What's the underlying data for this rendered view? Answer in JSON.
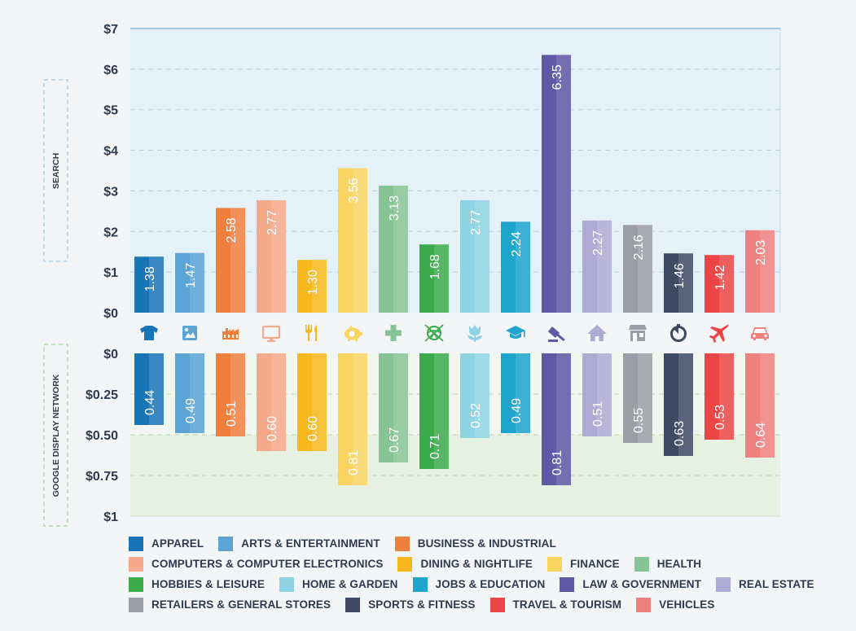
{
  "chart_data": {
    "type": "bar",
    "categories": [
      "APPAREL",
      "ARTS & ENTERTAINMENT",
      "BUSINESS & INDUSTRIAL",
      "COMPUTERS & COMPUTER ELECTRONICS",
      "DINING & NIGHTLIFE",
      "FINANCE",
      "HEALTH",
      "HOBBIES & LEISURE",
      "HOME & GARDEN",
      "JOBS & EDUCATION",
      "LAW & GOVERNMENT",
      "REAL ESTATE",
      "RETAILERS & GENERAL STORES",
      "SPORTS & FITNESS",
      "TRAVEL & TOURISM",
      "VEHICLES"
    ],
    "colors": [
      "#1875b7",
      "#5aa4d6",
      "#f07f3e",
      "#f5a98a",
      "#f6b81d",
      "#f9d463",
      "#86c496",
      "#3aaa4b",
      "#8ed3e4",
      "#1ea5cd",
      "#5f58a5",
      "#aeaad4",
      "#9b9ea6",
      "#3e4a63",
      "#ec4545",
      "#ef8080"
    ],
    "icons": [
      "shirt-icon",
      "picture-icon",
      "factory-icon",
      "monitor-icon",
      "fork-knife-icon",
      "piggy-bank-icon",
      "medical-cross-icon",
      "yarn-ball-icon",
      "tulip-icon",
      "graduation-cap-icon",
      "gavel-icon",
      "house-icon",
      "storefront-icon",
      "stopwatch-icon",
      "airplane-icon",
      "car-icon"
    ],
    "panels": [
      {
        "side_label": "SEARCH",
        "values": [
          1.38,
          1.47,
          2.58,
          2.77,
          1.3,
          3.56,
          3.13,
          1.68,
          2.77,
          2.24,
          6.35,
          2.27,
          2.16,
          1.46,
          1.42,
          2.03
        ],
        "data_labels": [
          "1.38",
          "1.47",
          "2.58",
          "2.77",
          "1.30",
          "3.56",
          "3.13",
          "1.68",
          "2.77",
          "2.24",
          "6.35",
          "2.27",
          "2.16",
          "1.46",
          "1.42",
          "2.03"
        ],
        "ylim": [
          0,
          7
        ],
        "ticks": [
          0,
          1,
          2,
          3,
          4,
          5,
          6,
          7
        ],
        "tick_labels": [
          "$0",
          "$1",
          "$2",
          "$3",
          "$4",
          "$5",
          "$6",
          "$7"
        ],
        "background": "#e4f1f9"
      },
      {
        "side_label": "GOOGLE DISPLAY NETWORK",
        "values": [
          0.44,
          0.49,
          0.51,
          0.6,
          0.6,
          0.81,
          0.67,
          0.71,
          0.52,
          0.49,
          0.81,
          0.51,
          0.55,
          0.63,
          0.53,
          0.64
        ],
        "data_labels": [
          "0.44",
          "0.49",
          "0.51",
          "0.60",
          "0.60",
          "0.81",
          "0.67",
          "0.71",
          "0.52",
          "0.49",
          "0.81",
          "0.51",
          "0.55",
          "0.63",
          "0.53",
          "0.64"
        ],
        "ylim": [
          0,
          1
        ],
        "ticks": [
          0,
          0.25,
          0.5,
          0.75,
          1
        ],
        "tick_labels": [
          "$0",
          "$0.25",
          "$0.50",
          "$0.75",
          "$1"
        ],
        "background": "#e6f1e1",
        "inverted": true
      }
    ],
    "grid": true,
    "legend_position": "bottom"
  },
  "legend": [
    [
      "APPAREL",
      "ARTS & ENTERTAINMENT",
      "BUSINESS & INDUSTRIAL"
    ],
    [
      "COMPUTERS & COMPUTER ELECTRONICS",
      "DINING & NIGHTLIFE",
      "FINANCE",
      "HEALTH"
    ],
    [
      "HOBBIES & LEISURE",
      "HOME & GARDEN",
      "JOBS & EDUCATION",
      "LAW & GOVERNMENT",
      "REAL ESTATE"
    ],
    [
      "RETAILERS & GENERAL STORES",
      "SPORTS & FITNESS",
      "TRAVEL & TOURISM",
      "VEHICLES"
    ]
  ]
}
